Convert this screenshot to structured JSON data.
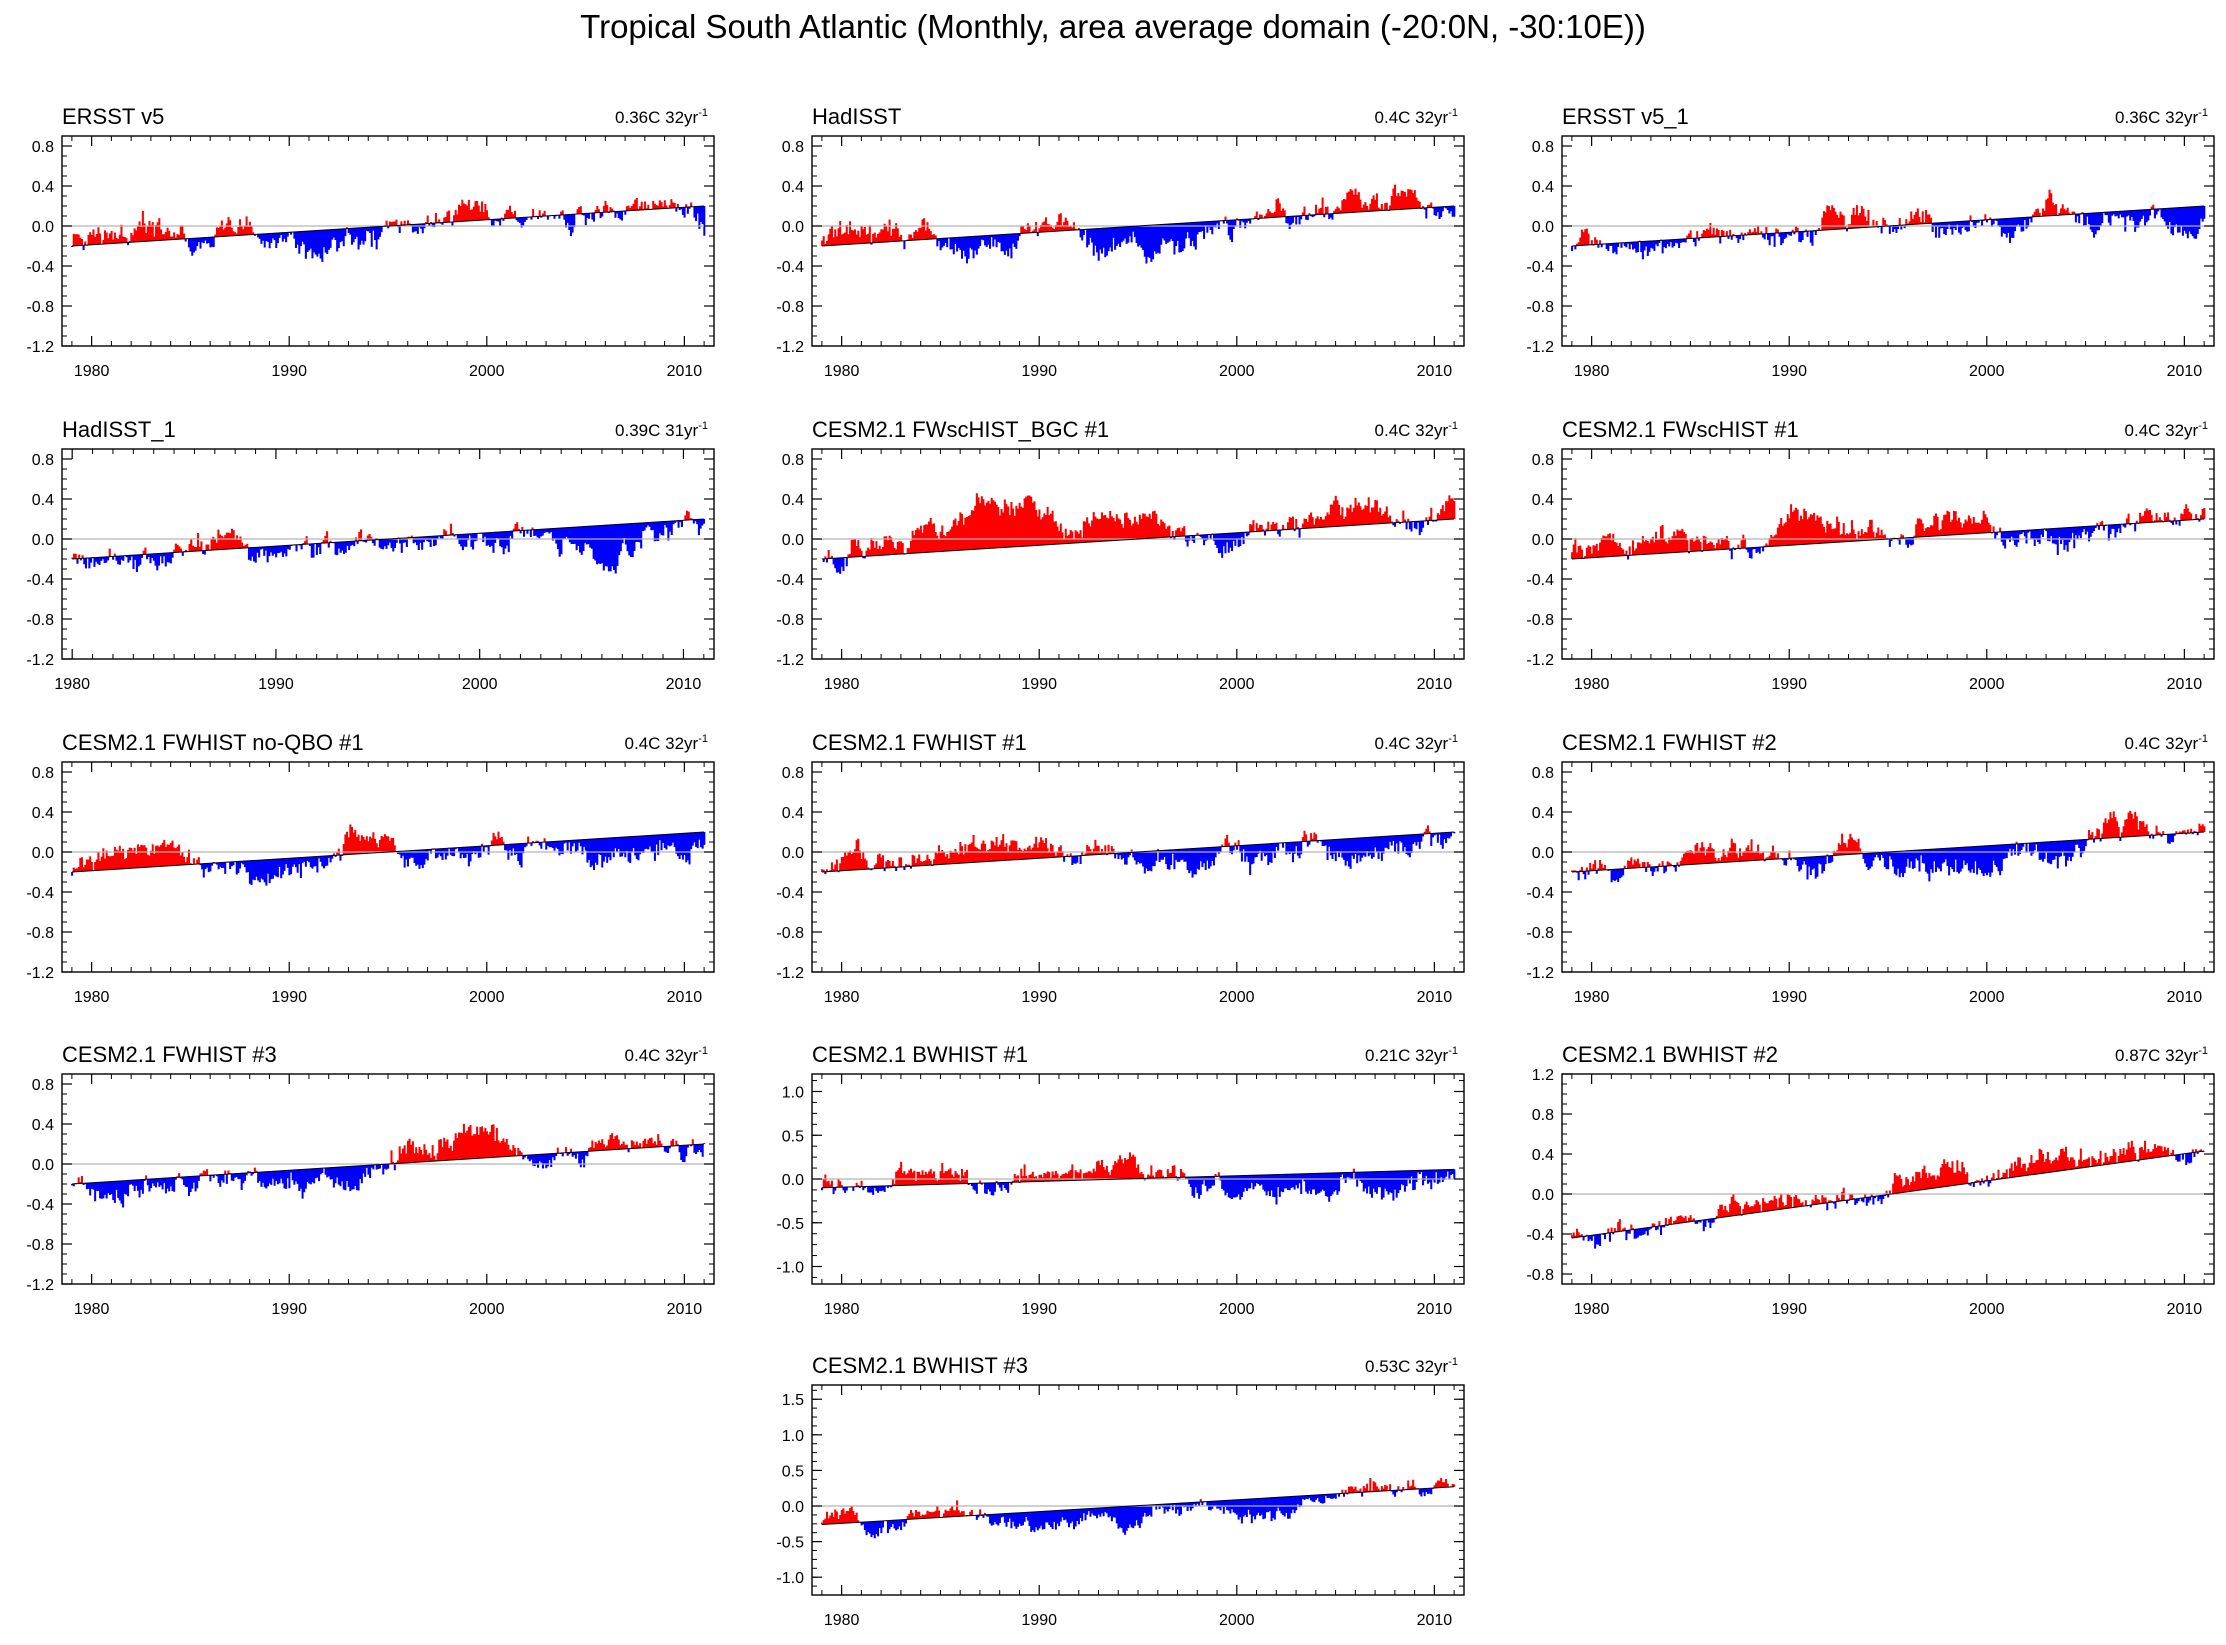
{
  "figure": {
    "title": "Tropical South Atlantic (Monthly, area average domain (-20:0N, -30:10E))",
    "colors": {
      "positive": "#ff0000",
      "negative": "#0000ff",
      "frame": "#000000",
      "zero_line": "#b3b3b3"
    }
  },
  "chart_data": [
    {
      "type": "area",
      "title": "ERSST v5",
      "trend_label": "0.36C 32yr",
      "trend_sup": "-1",
      "xlim": [
        1978.5,
        2011.5
      ],
      "ylim": [
        -1.2,
        0.9
      ],
      "x_ticks": [
        1980,
        1990,
        2000,
        2010
      ],
      "y_ticks": [
        "0.8",
        "0.4",
        "0.0",
        "-0.4",
        "-0.8",
        "-1.2"
      ],
      "start_year": 1979,
      "end_year": 2011,
      "trend_start": -0.2,
      "trend_end": 0.2,
      "seed": 11,
      "amplitude": 0.35
    },
    {
      "type": "area",
      "title": "HadISST",
      "trend_label": "0.4C 32yr",
      "trend_sup": "-1",
      "xlim": [
        1978.5,
        2011.5
      ],
      "ylim": [
        -1.2,
        0.9
      ],
      "x_ticks": [
        1980,
        1990,
        2000,
        2010
      ],
      "y_ticks": [
        "0.8",
        "0.4",
        "0.0",
        "-0.4",
        "-0.8",
        "-1.2"
      ],
      "start_year": 1979,
      "end_year": 2011,
      "trend_start": -0.2,
      "trend_end": 0.2,
      "seed": 12,
      "amplitude": 0.35
    },
    {
      "type": "area",
      "title": "ERSST v5_1",
      "trend_label": "0.36C 32yr",
      "trend_sup": "-1",
      "xlim": [
        1978.5,
        2011.5
      ],
      "ylim": [
        -1.2,
        0.9
      ],
      "x_ticks": [
        1980,
        1990,
        2000,
        2010
      ],
      "y_ticks": [
        "0.8",
        "0.4",
        "0.0",
        "-0.4",
        "-0.8",
        "-1.2"
      ],
      "start_year": 1979,
      "end_year": 2011,
      "trend_start": -0.2,
      "trend_end": 0.2,
      "seed": 13,
      "amplitude": 0.35
    },
    {
      "type": "area",
      "title": "HadISST_1",
      "trend_label": "0.39C 31yr",
      "trend_sup": "-1",
      "xlim": [
        1979.5,
        2011.5
      ],
      "ylim": [
        -1.2,
        0.9
      ],
      "x_ticks": [
        1980,
        1990,
        2000,
        2010
      ],
      "y_ticks": [
        "0.8",
        "0.4",
        "0.0",
        "-0.4",
        "-0.8",
        "-1.2"
      ],
      "start_year": 1980,
      "end_year": 2011,
      "trend_start": -0.2,
      "trend_end": 0.2,
      "seed": 14,
      "amplitude": 0.35
    },
    {
      "type": "area",
      "title": "CESM2.1 FWscHIST_BGC #1",
      "trend_label": "0.4C 32yr",
      "trend_sup": "-1",
      "xlim": [
        1978.5,
        2011.5
      ],
      "ylim": [
        -1.2,
        0.9
      ],
      "x_ticks": [
        1980,
        1990,
        2000,
        2010
      ],
      "y_ticks": [
        "0.8",
        "0.4",
        "0.0",
        "-0.4",
        "-0.8",
        "-1.2"
      ],
      "start_year": 1979,
      "end_year": 2011,
      "trend_start": -0.2,
      "trend_end": 0.2,
      "seed": 15,
      "amplitude": 0.35
    },
    {
      "type": "area",
      "title": "CESM2.1 FWscHIST #1",
      "trend_label": "0.4C 32yr",
      "trend_sup": "-1",
      "xlim": [
        1978.5,
        2011.5
      ],
      "ylim": [
        -1.2,
        0.9
      ],
      "x_ticks": [
        1980,
        1990,
        2000,
        2010
      ],
      "y_ticks": [
        "0.8",
        "0.4",
        "0.0",
        "-0.4",
        "-0.8",
        "-1.2"
      ],
      "start_year": 1979,
      "end_year": 2011,
      "trend_start": -0.2,
      "trend_end": 0.2,
      "seed": 16,
      "amplitude": 0.35
    },
    {
      "type": "area",
      "title": "CESM2.1 FWHIST no-QBO #1",
      "trend_label": "0.4C 32yr",
      "trend_sup": "-1",
      "xlim": [
        1978.5,
        2011.5
      ],
      "ylim": [
        -1.2,
        0.9
      ],
      "x_ticks": [
        1980,
        1990,
        2000,
        2010
      ],
      "y_ticks": [
        "0.8",
        "0.4",
        "0.0",
        "-0.4",
        "-0.8",
        "-1.2"
      ],
      "start_year": 1979,
      "end_year": 2011,
      "trend_start": -0.2,
      "trend_end": 0.2,
      "seed": 17,
      "amplitude": 0.35
    },
    {
      "type": "area",
      "title": "CESM2.1 FWHIST #1",
      "trend_label": "0.4C 32yr",
      "trend_sup": "-1",
      "xlim": [
        1978.5,
        2011.5
      ],
      "ylim": [
        -1.2,
        0.9
      ],
      "x_ticks": [
        1980,
        1990,
        2000,
        2010
      ],
      "y_ticks": [
        "0.8",
        "0.4",
        "0.0",
        "-0.4",
        "-0.8",
        "-1.2"
      ],
      "start_year": 1979,
      "end_year": 2011,
      "trend_start": -0.2,
      "trend_end": 0.2,
      "seed": 18,
      "amplitude": 0.35
    },
    {
      "type": "area",
      "title": "CESM2.1 FWHIST #2",
      "trend_label": "0.4C 32yr",
      "trend_sup": "-1",
      "xlim": [
        1978.5,
        2011.5
      ],
      "ylim": [
        -1.2,
        0.9
      ],
      "x_ticks": [
        1980,
        1990,
        2000,
        2010
      ],
      "y_ticks": [
        "0.8",
        "0.4",
        "0.0",
        "-0.4",
        "-0.8",
        "-1.2"
      ],
      "start_year": 1979,
      "end_year": 2011,
      "trend_start": -0.2,
      "trend_end": 0.2,
      "seed": 19,
      "amplitude": 0.35
    },
    {
      "type": "area",
      "title": "CESM2.1 FWHIST #3",
      "trend_label": "0.4C 32yr",
      "trend_sup": "-1",
      "xlim": [
        1978.5,
        2011.5
      ],
      "ylim": [
        -1.2,
        0.9
      ],
      "x_ticks": [
        1980,
        1990,
        2000,
        2010
      ],
      "y_ticks": [
        "0.8",
        "0.4",
        "0.0",
        "-0.4",
        "-0.8",
        "-1.2"
      ],
      "start_year": 1979,
      "end_year": 2011,
      "trend_start": -0.2,
      "trend_end": 0.2,
      "seed": 20,
      "amplitude": 0.35
    },
    {
      "type": "area",
      "title": "CESM2.1 BWHIST #1",
      "trend_label": "0.21C 32yr",
      "trend_sup": "-1",
      "xlim": [
        1978.5,
        2011.5
      ],
      "ylim": [
        -1.2,
        1.2
      ],
      "x_ticks": [
        1980,
        1990,
        2000,
        2010
      ],
      "y_ticks": [
        "1.0",
        "0.5",
        "0.0",
        "-0.5",
        "-1.0"
      ],
      "start_year": 1979,
      "end_year": 2011,
      "trend_start": -0.1,
      "trend_end": 0.11,
      "seed": 21,
      "amplitude": 0.4
    },
    {
      "type": "area",
      "title": "CESM2.1 BWHIST #2",
      "trend_label": "0.87C 32yr",
      "trend_sup": "-1",
      "xlim": [
        1978.5,
        2011.5
      ],
      "ylim": [
        -0.9,
        1.2
      ],
      "x_ticks": [
        1980,
        1990,
        2000,
        2010
      ],
      "y_ticks": [
        "1.2",
        "0.8",
        "0.4",
        "0.0",
        "-0.4",
        "-0.8"
      ],
      "start_year": 1979,
      "end_year": 2011,
      "trend_start": -0.44,
      "trend_end": 0.43,
      "seed": 22,
      "amplitude": 0.25
    },
    {
      "type": "area",
      "title": "CESM2.1 BWHIST #3",
      "trend_label": "0.53C 32yr",
      "trend_sup": "-1",
      "xlim": [
        1978.5,
        2011.5
      ],
      "ylim": [
        -1.25,
        1.7
      ],
      "x_ticks": [
        1980,
        1990,
        2000,
        2010
      ],
      "y_ticks": [
        "1.5",
        "1.0",
        "0.5",
        "0.0",
        "-0.5",
        "-1.0"
      ],
      "start_year": 1979,
      "end_year": 2011,
      "trend_start": -0.26,
      "trend_end": 0.27,
      "seed": 23,
      "amplitude": 0.35
    }
  ]
}
